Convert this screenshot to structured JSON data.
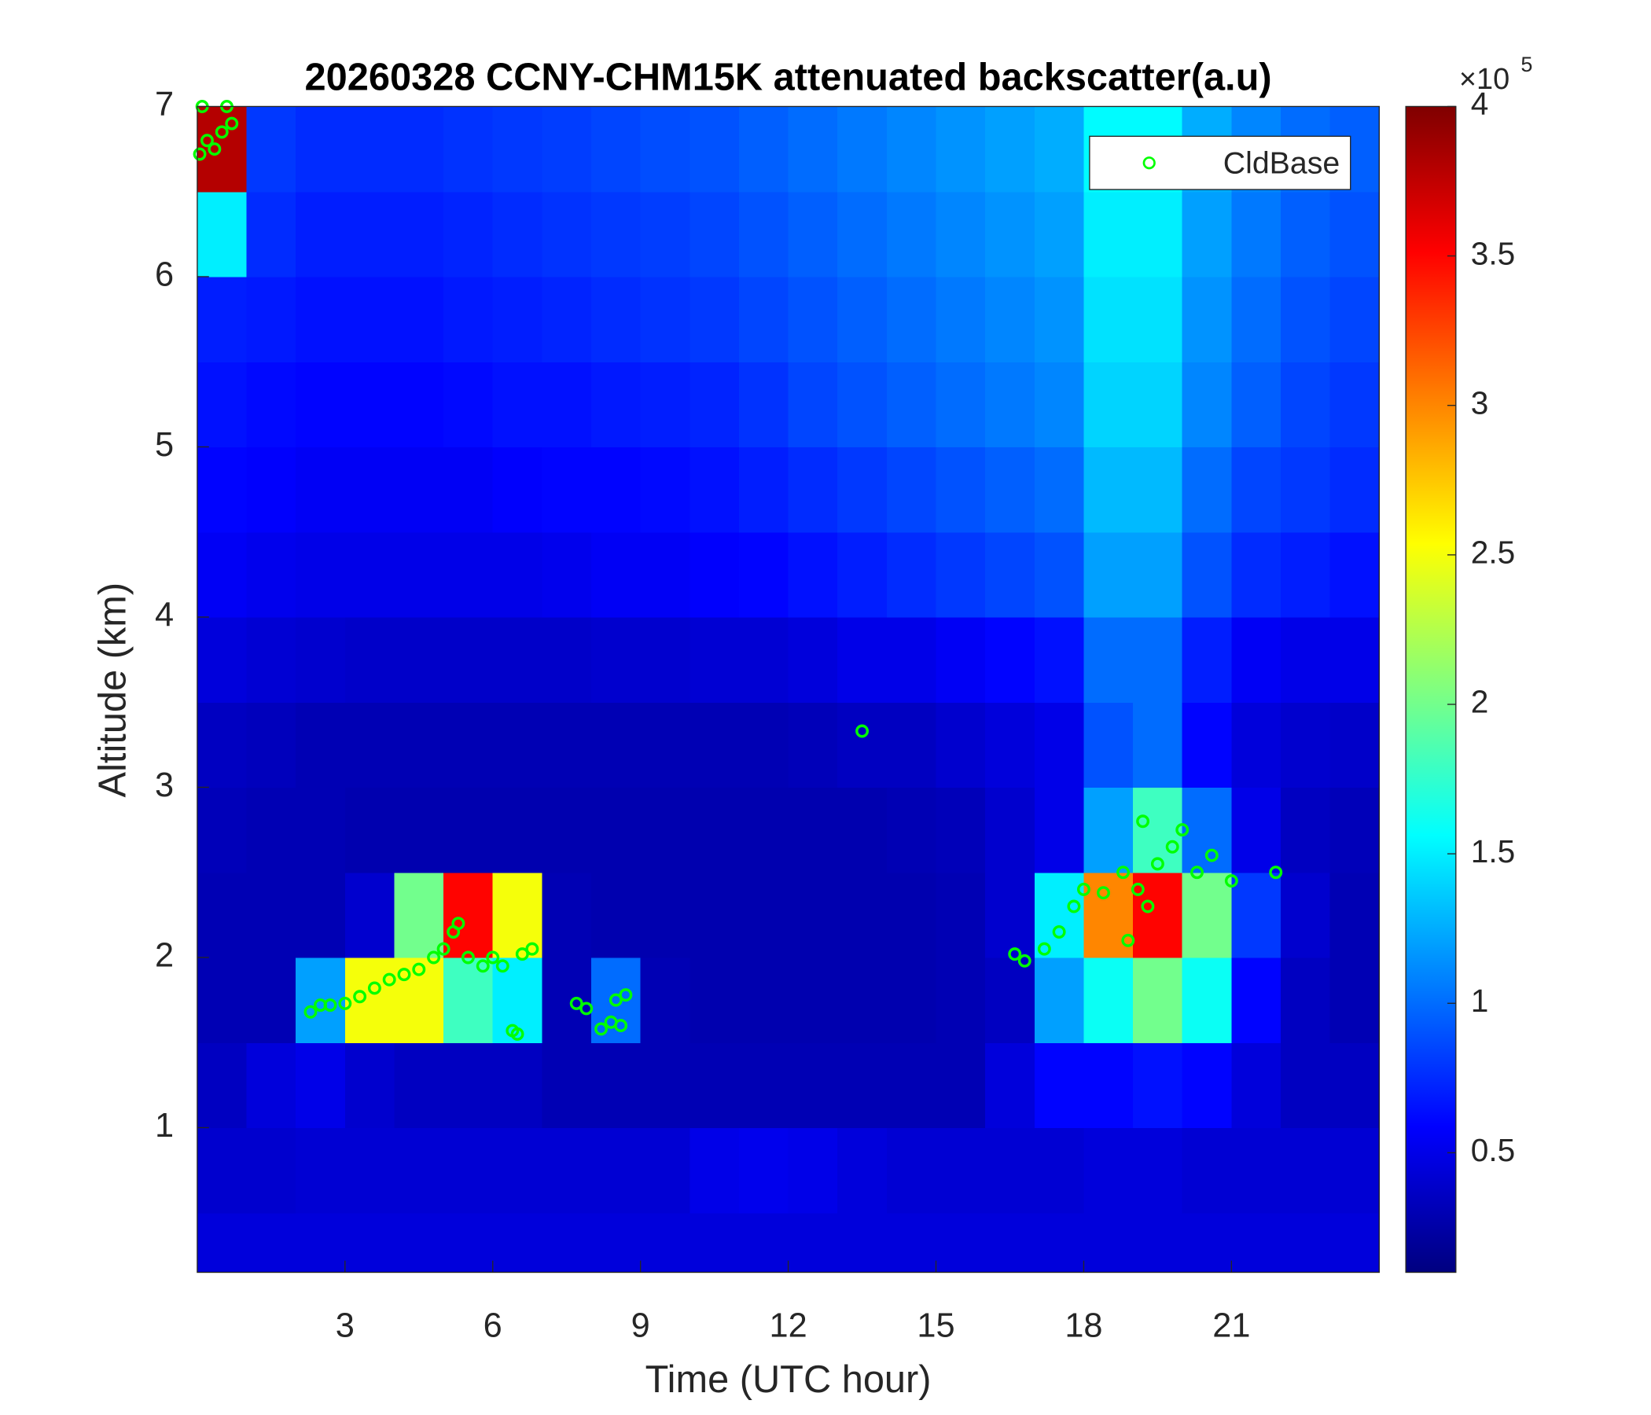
{
  "chart_data": {
    "type": "heatmap",
    "title": "20260328 CCNY-CHM15K attenuated backscatter(a.u)",
    "xlabel": "Time (UTC hour)",
    "ylabel": "Altitude (km)",
    "xlim": [
      0,
      24
    ],
    "ylim": [
      0.15,
      7
    ],
    "xticks": [
      3,
      6,
      9,
      12,
      15,
      18,
      21
    ],
    "yticks": [
      1,
      2,
      3,
      4,
      5,
      6,
      7
    ],
    "xbins": [
      0,
      1,
      2,
      3,
      4,
      5,
      6,
      7,
      8,
      9,
      10,
      11,
      12,
      13,
      14,
      15,
      16,
      17,
      18,
      19,
      20,
      21,
      22,
      23,
      24
    ],
    "ybins": [
      0.15,
      0.5,
      1,
      1.5,
      2,
      2.5,
      3,
      3.5,
      4,
      4.5,
      5,
      5.5,
      6,
      6.5,
      7
    ],
    "z": [
      [
        0.45,
        0.45,
        0.45,
        0.45,
        0.45,
        0.45,
        0.45,
        0.45,
        0.45,
        0.45,
        0.45,
        0.45,
        0.45,
        0.45,
        0.45,
        0.45,
        0.45,
        0.45,
        0.45,
        0.45,
        0.45,
        0.45,
        0.45,
        0.45
      ],
      [
        0.4,
        0.4,
        0.42,
        0.42,
        0.42,
        0.42,
        0.42,
        0.42,
        0.42,
        0.42,
        0.5,
        0.52,
        0.5,
        0.45,
        0.42,
        0.42,
        0.42,
        0.42,
        0.45,
        0.45,
        0.42,
        0.42,
        0.42,
        0.42
      ],
      [
        0.35,
        0.45,
        0.5,
        0.4,
        0.35,
        0.35,
        0.35,
        0.3,
        0.3,
        0.3,
        0.3,
        0.3,
        0.3,
        0.3,
        0.3,
        0.3,
        0.45,
        0.6,
        0.6,
        0.65,
        0.6,
        0.45,
        0.35,
        0.35
      ],
      [
        0.3,
        0.3,
        1.2,
        2.5,
        2.5,
        1.8,
        1.5,
        0.3,
        1.0,
        0.3,
        0.28,
        0.28,
        0.28,
        0.28,
        0.28,
        0.3,
        0.35,
        1.2,
        1.6,
        2.0,
        1.6,
        0.6,
        0.35,
        0.3
      ],
      [
        0.3,
        0.3,
        0.3,
        0.4,
        2.0,
        3.5,
        2.5,
        0.3,
        0.28,
        0.28,
        0.28,
        0.28,
        0.28,
        0.28,
        0.28,
        0.3,
        0.4,
        1.5,
        3.0,
        3.5,
        2.0,
        0.8,
        0.4,
        0.3
      ],
      [
        0.32,
        0.3,
        0.3,
        0.28,
        0.28,
        0.28,
        0.28,
        0.28,
        0.28,
        0.28,
        0.28,
        0.28,
        0.28,
        0.28,
        0.3,
        0.32,
        0.4,
        0.5,
        1.2,
        1.8,
        1.0,
        0.5,
        0.35,
        0.32
      ],
      [
        0.35,
        0.33,
        0.3,
        0.3,
        0.3,
        0.3,
        0.3,
        0.3,
        0.3,
        0.3,
        0.3,
        0.3,
        0.32,
        0.35,
        0.35,
        0.4,
        0.45,
        0.5,
        0.9,
        1.0,
        0.6,
        0.45,
        0.4,
        0.38
      ],
      [
        0.45,
        0.42,
        0.4,
        0.38,
        0.38,
        0.38,
        0.38,
        0.38,
        0.4,
        0.4,
        0.42,
        0.42,
        0.45,
        0.5,
        0.5,
        0.55,
        0.6,
        0.65,
        1.0,
        1.0,
        0.7,
        0.55,
        0.5,
        0.5
      ],
      [
        0.55,
        0.52,
        0.5,
        0.5,
        0.5,
        0.5,
        0.5,
        0.52,
        0.55,
        0.55,
        0.58,
        0.6,
        0.65,
        0.7,
        0.75,
        0.8,
        0.85,
        0.9,
        1.2,
        1.2,
        0.9,
        0.75,
        0.7,
        0.65
      ],
      [
        0.6,
        0.58,
        0.55,
        0.55,
        0.55,
        0.55,
        0.58,
        0.6,
        0.6,
        0.62,
        0.65,
        0.7,
        0.75,
        0.8,
        0.85,
        0.9,
        0.95,
        1.0,
        1.3,
        1.3,
        1.0,
        0.85,
        0.8,
        0.75
      ],
      [
        0.65,
        0.62,
        0.6,
        0.6,
        0.6,
        0.62,
        0.65,
        0.65,
        0.68,
        0.7,
        0.72,
        0.78,
        0.85,
        0.9,
        0.95,
        1.0,
        1.05,
        1.1,
        1.4,
        1.4,
        1.1,
        0.95,
        0.85,
        0.8
      ],
      [
        0.7,
        0.68,
        0.65,
        0.65,
        0.65,
        0.68,
        0.7,
        0.72,
        0.75,
        0.78,
        0.8,
        0.85,
        0.9,
        0.95,
        1.0,
        1.05,
        1.1,
        1.15,
        1.45,
        1.45,
        1.15,
        1.0,
        0.9,
        0.85
      ],
      [
        1.5,
        0.75,
        0.7,
        0.7,
        0.7,
        0.72,
        0.75,
        0.78,
        0.8,
        0.82,
        0.85,
        0.9,
        0.95,
        1.0,
        1.05,
        1.1,
        1.15,
        1.2,
        1.5,
        1.5,
        1.2,
        1.05,
        0.95,
        0.9
      ],
      [
        3.8,
        0.8,
        0.75,
        0.75,
        0.75,
        0.78,
        0.8,
        0.82,
        0.85,
        0.88,
        0.9,
        0.95,
        1.0,
        1.05,
        1.1,
        1.15,
        1.2,
        1.25,
        1.55,
        1.55,
        1.25,
        1.1,
        1.0,
        0.95
      ]
    ],
    "colormap": "jet",
    "colorbar": {
      "lim": [
        0.1,
        4
      ],
      "ticks": [
        0.5,
        1,
        1.5,
        2,
        2.5,
        3,
        3.5,
        4
      ],
      "multiplier_base": "×10",
      "multiplier_exponent": "5"
    },
    "series": [
      {
        "name": "CldBase",
        "type": "scatter",
        "color": "#00ff00",
        "x": [
          0.05,
          0.1,
          0.2,
          0.35,
          0.5,
          0.6,
          0.7,
          2.3,
          2.5,
          2.7,
          3.0,
          3.3,
          3.6,
          3.9,
          4.2,
          4.5,
          4.8,
          5.0,
          5.2,
          5.3,
          5.5,
          5.8,
          6.0,
          6.2,
          6.4,
          6.5,
          6.6,
          6.8,
          7.7,
          7.9,
          8.2,
          8.4,
          8.5,
          8.6,
          8.7,
          13.5,
          16.6,
          16.8,
          17.2,
          17.5,
          17.8,
          18.0,
          18.4,
          18.8,
          18.9,
          19.1,
          19.2,
          19.3,
          19.5,
          19.8,
          20.0,
          20.3,
          20.6,
          21.0,
          21.9
        ],
        "y": [
          6.72,
          7.0,
          6.8,
          6.75,
          6.85,
          7.0,
          6.9,
          1.68,
          1.72,
          1.72,
          1.73,
          1.77,
          1.82,
          1.87,
          1.9,
          1.93,
          2.0,
          2.05,
          2.15,
          2.2,
          2.0,
          1.95,
          2.0,
          1.95,
          1.57,
          1.55,
          2.02,
          2.05,
          1.73,
          1.7,
          1.58,
          1.62,
          1.75,
          1.6,
          1.78,
          3.33,
          2.02,
          1.98,
          2.05,
          2.15,
          2.3,
          2.4,
          2.38,
          2.5,
          2.1,
          2.4,
          2.8,
          2.3,
          2.55,
          2.65,
          2.75,
          2.5,
          2.6,
          2.45,
          2.5
        ]
      }
    ],
    "legend": "upper right"
  }
}
